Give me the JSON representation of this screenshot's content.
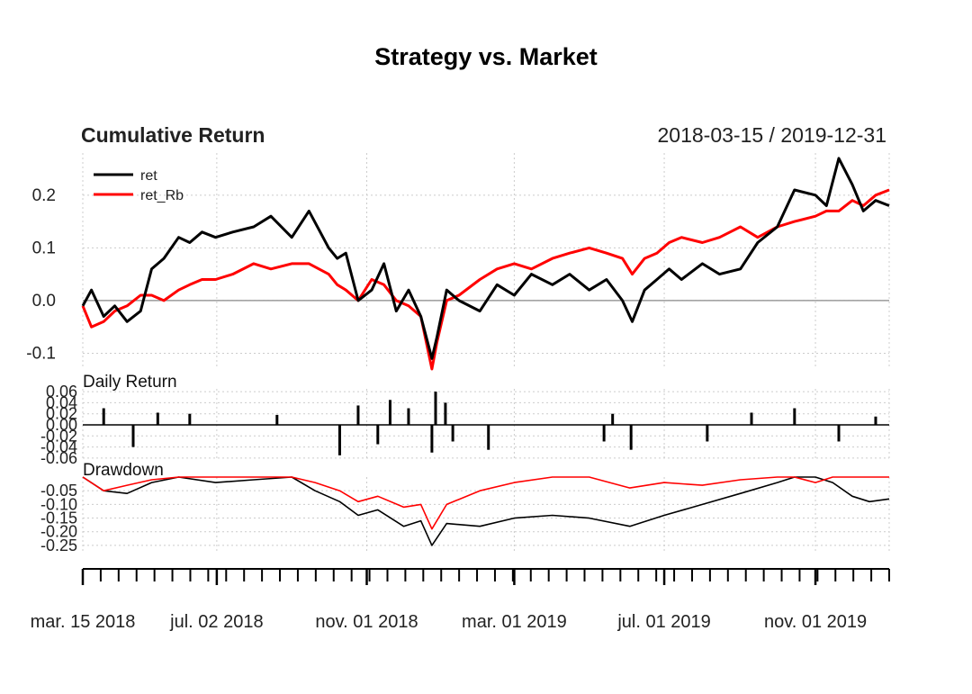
{
  "chart_data": {
    "type": "line",
    "title": "Strategy vs. Market",
    "date_range": "2018-03-15 / 2019-12-31",
    "x_tick_labels": [
      "mar. 15 2018",
      "jul. 02 2018",
      "nov. 01 2018",
      "mar. 01 2019",
      "jul. 01 2019",
      "nov. 01 2019"
    ],
    "x_tick_dates": [
      "2018-03-15",
      "2018-07-02",
      "2018-11-01",
      "2019-03-01",
      "2019-07-01",
      "2019-11-01"
    ],
    "x_minor_tick_count": 45,
    "x_start": "2018-03-15",
    "x_end": "2019-12-31",
    "grid": true,
    "colors": {
      "ret": "#000000",
      "ret_Rb": "#ff0000",
      "zero": "#888888",
      "grid": "#cccccc"
    },
    "panels": [
      {
        "title": "Cumulative Return",
        "ylim": [
          -0.13,
          0.28
        ],
        "yticks": [
          "0.2",
          "0.1",
          "0.0",
          "-0.1"
        ],
        "ytick_values": [
          0.2,
          0.1,
          0.0,
          -0.1
        ],
        "legend": [
          "ret",
          "ret_Rb"
        ],
        "legend_position": "top-left",
        "series": [
          {
            "name": "ret",
            "x": [
              "2018-03-15",
              "2018-03-22",
              "2018-04-01",
              "2018-04-10",
              "2018-04-20",
              "2018-05-01",
              "2018-05-10",
              "2018-05-20",
              "2018-06-01",
              "2018-06-10",
              "2018-06-20",
              "2018-07-01",
              "2018-07-15",
              "2018-08-01",
              "2018-08-15",
              "2018-09-01",
              "2018-09-15",
              "2018-10-01",
              "2018-10-08",
              "2018-10-15",
              "2018-10-25",
              "2018-11-05",
              "2018-11-15",
              "2018-11-25",
              "2018-12-05",
              "2018-12-15",
              "2018-12-24",
              "2018-12-28",
              "2019-01-05",
              "2019-01-15",
              "2019-02-01",
              "2019-02-15",
              "2019-03-01",
              "2019-03-15",
              "2019-04-01",
              "2019-04-15",
              "2019-05-01",
              "2019-05-15",
              "2019-05-28",
              "2019-06-05",
              "2019-06-15",
              "2019-06-25",
              "2019-07-05",
              "2019-07-15",
              "2019-08-01",
              "2019-08-15",
              "2019-09-01",
              "2019-09-15",
              "2019-10-01",
              "2019-10-15",
              "2019-11-01",
              "2019-11-10",
              "2019-11-20",
              "2019-12-01",
              "2019-12-10",
              "2019-12-20",
              "2019-12-31"
            ],
            "y": [
              -0.01,
              0.02,
              -0.03,
              -0.01,
              -0.04,
              -0.02,
              0.06,
              0.08,
              0.12,
              0.11,
              0.13,
              0.12,
              0.13,
              0.14,
              0.16,
              0.12,
              0.17,
              0.1,
              0.08,
              0.09,
              0.0,
              0.02,
              0.07,
              -0.02,
              0.02,
              -0.03,
              -0.11,
              -0.07,
              0.02,
              0.0,
              -0.02,
              0.03,
              0.01,
              0.05,
              0.03,
              0.05,
              0.02,
              0.04,
              0.0,
              -0.04,
              0.02,
              0.04,
              0.06,
              0.04,
              0.07,
              0.05,
              0.06,
              0.11,
              0.14,
              0.21,
              0.2,
              0.18,
              0.27,
              0.22,
              0.17,
              0.19,
              0.18
            ]
          },
          {
            "name": "ret_Rb",
            "x": [
              "2018-03-15",
              "2018-03-22",
              "2018-04-01",
              "2018-04-10",
              "2018-04-20",
              "2018-05-01",
              "2018-05-10",
              "2018-05-20",
              "2018-06-01",
              "2018-06-10",
              "2018-06-20",
              "2018-07-01",
              "2018-07-15",
              "2018-08-01",
              "2018-08-15",
              "2018-09-01",
              "2018-09-15",
              "2018-10-01",
              "2018-10-08",
              "2018-10-15",
              "2018-10-25",
              "2018-11-05",
              "2018-11-15",
              "2018-11-25",
              "2018-12-05",
              "2018-12-15",
              "2018-12-24",
              "2018-12-28",
              "2019-01-05",
              "2019-01-15",
              "2019-02-01",
              "2019-02-15",
              "2019-03-01",
              "2019-03-15",
              "2019-04-01",
              "2019-04-15",
              "2019-05-01",
              "2019-05-15",
              "2019-05-28",
              "2019-06-05",
              "2019-06-15",
              "2019-06-25",
              "2019-07-05",
              "2019-07-15",
              "2019-08-01",
              "2019-08-15",
              "2019-09-01",
              "2019-09-15",
              "2019-10-01",
              "2019-10-15",
              "2019-11-01",
              "2019-11-10",
              "2019-11-20",
              "2019-12-01",
              "2019-12-10",
              "2019-12-20",
              "2019-12-31"
            ],
            "y": [
              -0.01,
              -0.05,
              -0.04,
              -0.02,
              -0.01,
              0.01,
              0.01,
              0.0,
              0.02,
              0.03,
              0.04,
              0.04,
              0.05,
              0.07,
              0.06,
              0.07,
              0.07,
              0.05,
              0.03,
              0.02,
              0.0,
              0.04,
              0.03,
              0.0,
              -0.01,
              -0.03,
              -0.13,
              -0.08,
              0.0,
              0.01,
              0.04,
              0.06,
              0.07,
              0.06,
              0.08,
              0.09,
              0.1,
              0.09,
              0.08,
              0.05,
              0.08,
              0.09,
              0.11,
              0.12,
              0.11,
              0.12,
              0.14,
              0.12,
              0.14,
              0.15,
              0.16,
              0.17,
              0.17,
              0.19,
              0.18,
              0.2,
              0.21
            ]
          }
        ]
      },
      {
        "title": "Daily Return",
        "ylim": [
          -0.065,
          0.065
        ],
        "yticks": [
          "0.06",
          "0.04",
          "0.02",
          "0.00",
          "-0.02",
          "-0.04",
          "-0.06"
        ],
        "ytick_values": [
          0.06,
          0.04,
          0.02,
          0.0,
          -0.02,
          -0.04,
          -0.06
        ],
        "spikes": [
          {
            "x": "2018-04-01",
            "y": 0.03
          },
          {
            "x": "2018-04-25",
            "y": -0.04
          },
          {
            "x": "2018-05-15",
            "y": 0.022
          },
          {
            "x": "2018-06-10",
            "y": 0.02
          },
          {
            "x": "2018-08-20",
            "y": 0.018
          },
          {
            "x": "2018-10-10",
            "y": -0.055
          },
          {
            "x": "2018-10-25",
            "y": 0.035
          },
          {
            "x": "2018-11-10",
            "y": -0.035
          },
          {
            "x": "2018-11-20",
            "y": 0.045
          },
          {
            "x": "2018-12-05",
            "y": 0.03
          },
          {
            "x": "2018-12-24",
            "y": -0.05
          },
          {
            "x": "2018-12-27",
            "y": 0.06
          },
          {
            "x": "2019-01-04",
            "y": 0.04
          },
          {
            "x": "2019-01-10",
            "y": -0.03
          },
          {
            "x": "2019-02-08",
            "y": -0.045
          },
          {
            "x": "2019-05-13",
            "y": -0.03
          },
          {
            "x": "2019-05-20",
            "y": 0.02
          },
          {
            "x": "2019-06-04",
            "y": -0.045
          },
          {
            "x": "2019-08-05",
            "y": -0.03
          },
          {
            "x": "2019-09-10",
            "y": 0.022
          },
          {
            "x": "2019-10-15",
            "y": 0.03
          },
          {
            "x": "2019-11-20",
            "y": -0.03
          },
          {
            "x": "2019-12-20",
            "y": 0.015
          }
        ]
      },
      {
        "title": "Drawdown",
        "ylim": [
          -0.27,
          0.0
        ],
        "yticks": [
          "-0.05",
          "-0.10",
          "-0.15",
          "-0.20",
          "-0.25"
        ],
        "ytick_values": [
          -0.05,
          -0.1,
          -0.15,
          -0.2,
          -0.25
        ],
        "series": [
          {
            "name": "ret",
            "x": [
              "2018-03-15",
              "2018-04-01",
              "2018-04-20",
              "2018-05-10",
              "2018-06-01",
              "2018-07-01",
              "2018-08-01",
              "2018-09-01",
              "2018-09-20",
              "2018-10-10",
              "2018-10-25",
              "2018-11-10",
              "2018-12-01",
              "2018-12-15",
              "2018-12-24",
              "2019-01-05",
              "2019-02-01",
              "2019-03-01",
              "2019-04-01",
              "2019-05-01",
              "2019-06-03",
              "2019-07-01",
              "2019-08-01",
              "2019-09-01",
              "2019-10-01",
              "2019-10-15",
              "2019-11-01",
              "2019-11-15",
              "2019-12-01",
              "2019-12-15",
              "2019-12-31"
            ],
            "y": [
              0.0,
              -0.05,
              -0.06,
              -0.02,
              0.0,
              -0.02,
              -0.01,
              0.0,
              -0.05,
              -0.09,
              -0.14,
              -0.12,
              -0.18,
              -0.16,
              -0.25,
              -0.17,
              -0.18,
              -0.15,
              -0.14,
              -0.15,
              -0.18,
              -0.14,
              -0.1,
              -0.06,
              -0.02,
              0.0,
              0.0,
              -0.02,
              -0.07,
              -0.09,
              -0.08
            ]
          },
          {
            "name": "ret_Rb",
            "x": [
              "2018-03-15",
              "2018-04-01",
              "2018-04-20",
              "2018-05-10",
              "2018-06-01",
              "2018-07-01",
              "2018-08-01",
              "2018-09-01",
              "2018-09-20",
              "2018-10-10",
              "2018-10-25",
              "2018-11-10",
              "2018-12-01",
              "2018-12-15",
              "2018-12-24",
              "2019-01-05",
              "2019-02-01",
              "2019-03-01",
              "2019-04-01",
              "2019-05-01",
              "2019-06-03",
              "2019-07-01",
              "2019-08-01",
              "2019-09-01",
              "2019-10-01",
              "2019-10-15",
              "2019-11-01",
              "2019-11-15",
              "2019-12-01",
              "2019-12-15",
              "2019-12-31"
            ],
            "y": [
              0.0,
              -0.05,
              -0.03,
              -0.01,
              0.0,
              0.0,
              0.0,
              0.0,
              -0.02,
              -0.05,
              -0.09,
              -0.07,
              -0.11,
              -0.1,
              -0.19,
              -0.1,
              -0.05,
              -0.02,
              0.0,
              0.0,
              -0.04,
              -0.02,
              -0.03,
              -0.01,
              0.0,
              0.0,
              -0.02,
              0.0,
              0.0,
              0.0,
              0.0
            ]
          }
        ]
      }
    ]
  }
}
